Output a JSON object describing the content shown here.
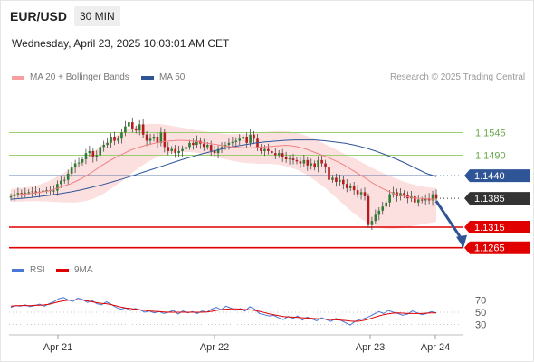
{
  "header": {
    "symbol": "EUR/USD",
    "timeframe": "30 MIN",
    "timestamp": "Wednesday, April 23, 2025 10:03:01 AM CET"
  },
  "legend": {
    "ma20_label": "MA 20 + Bollinger Bands",
    "ma50_label": "MA 50",
    "copyright": "Research © 2025 Trading Central",
    "rsi_label": "RSI",
    "ma9_label": "9MA"
  },
  "colors": {
    "ma20": "#f08080",
    "ma50": "#2f5597",
    "band": "#fbd5d5",
    "bull": "#2e7d32",
    "bear": "#b71c1c",
    "resistance": "#9acd6e",
    "pivot": "#2f5597",
    "support": "#e00000",
    "rsi": "#4a78d6",
    "rsi_ma": "#e00000",
    "current": "#333333"
  },
  "chart_data": [
    {
      "type": "candlestick",
      "title": "EUR/USD 30 MIN",
      "x_ticks": [
        "Apr 21",
        "Apr 22",
        "Apr 23",
        "Apr 24"
      ],
      "ylim": [
        1.1238,
        1.1645
      ],
      "levels": [
        {
          "label": "1.1545",
          "value": 1.1545,
          "kind": "resistance"
        },
        {
          "label": "1.1490",
          "value": 1.149,
          "kind": "resistance"
        },
        {
          "label": "1.1440",
          "value": 1.144,
          "kind": "pivot"
        },
        {
          "label": "1.1385",
          "value": 1.1385,
          "kind": "current"
        },
        {
          "label": "1.1315",
          "value": 1.1315,
          "kind": "support"
        },
        {
          "label": "1.1265",
          "value": 1.1265,
          "kind": "support"
        }
      ],
      "close": [
        1.139,
        1.1395,
        1.1398,
        1.1397,
        1.1399,
        1.14,
        1.1402,
        1.14,
        1.1401,
        1.1404,
        1.1405,
        1.1403,
        1.1404,
        1.142,
        1.1428,
        1.143,
        1.1445,
        1.146,
        1.147,
        1.1472,
        1.148,
        1.1495,
        1.15,
        1.1485,
        1.149,
        1.151,
        1.1515,
        1.152,
        1.1535,
        1.1525,
        1.153,
        1.1545,
        1.156,
        1.157,
        1.1555,
        1.155,
        1.1565,
        1.154,
        1.1525,
        1.153,
        1.1535,
        1.152,
        1.1545,
        1.151,
        1.15,
        1.1505,
        1.1495,
        1.15,
        1.1505,
        1.151,
        1.152,
        1.1515,
        1.1525,
        1.1518,
        1.151,
        1.1515,
        1.15,
        1.1495,
        1.1505,
        1.151,
        1.1515,
        1.152,
        1.1522,
        1.1525,
        1.153,
        1.1535,
        1.152,
        1.154,
        1.153,
        1.151,
        1.15,
        1.1505,
        1.15,
        1.1495,
        1.149,
        1.1495,
        1.1485,
        1.148,
        1.1482,
        1.1478,
        1.1475,
        1.147,
        1.1478,
        1.1465,
        1.147,
        1.146,
        1.1478,
        1.147,
        1.146,
        1.143,
        1.1435,
        1.1425,
        1.143,
        1.142,
        1.141,
        1.1415,
        1.1405,
        1.1395,
        1.14,
        1.139,
        1.132,
        1.133,
        1.1345,
        1.1355,
        1.1365,
        1.1375,
        1.1395,
        1.14,
        1.139,
        1.1398,
        1.1392,
        1.1385,
        1.139,
        1.1375,
        1.1382,
        1.138,
        1.1385,
        1.138,
        1.1395,
        1.1385
      ],
      "ma20": [
        1.1392,
        1.1393,
        1.1395,
        1.1396,
        1.1397,
        1.1399,
        1.1401,
        1.1403,
        1.1407,
        1.1411,
        1.1416,
        1.142,
        1.1426,
        1.1432,
        1.144,
        1.1448,
        1.1457,
        1.1466,
        1.1474,
        1.1481,
        1.1488,
        1.1494,
        1.1501,
        1.1506,
        1.151,
        1.1514,
        1.1517,
        1.152,
        1.1522,
        1.1524,
        1.1525,
        1.1526,
        1.1526,
        1.1525,
        1.1524,
        1.1522,
        1.152,
        1.1518,
        1.1516,
        1.1514,
        1.1512,
        1.151,
        1.1509,
        1.1508,
        1.1508,
        1.1508,
        1.1509,
        1.151,
        1.1511,
        1.1512,
        1.1513,
        1.1514,
        1.1513,
        1.1511,
        1.1508,
        1.1504,
        1.1499,
        1.1494,
        1.1489,
        1.1484,
        1.1478,
        1.1472,
        1.1465,
        1.1457,
        1.1449,
        1.1441,
        1.1433,
        1.1424,
        1.1416,
        1.1409,
        1.1403,
        1.1397,
        1.1393,
        1.139,
        1.1388,
        1.1386,
        1.1385,
        1.1384,
        1.1383,
        1.1383
      ],
      "ma50": [
        1.1383,
        1.1385,
        1.1387,
        1.139,
        1.1393,
        1.1397,
        1.1401,
        1.1406,
        1.1412,
        1.1418,
        1.1425,
        1.1432,
        1.144,
        1.1448,
        1.1456,
        1.1464,
        1.1472,
        1.148,
        1.1487,
        1.1494,
        1.15,
        1.1506,
        1.1511,
        1.1515,
        1.1519,
        1.1522,
        1.1524,
        1.1526,
        1.1527,
        1.1527,
        1.1527,
        1.1525,
        1.1522,
        1.1519,
        1.1514,
        1.1508,
        1.15,
        1.1491,
        1.1481,
        1.147,
        1.1458,
        1.1446,
        1.1438
      ],
      "band_upper": [
        1.1408,
        1.141,
        1.1413,
        1.1418,
        1.1426,
        1.1437,
        1.145,
        1.1465,
        1.1482,
        1.15,
        1.1517,
        1.1533,
        1.1546,
        1.1556,
        1.1563,
        1.1566,
        1.1566,
        1.1563,
        1.1559,
        1.1555,
        1.1551,
        1.1548,
        1.1545,
        1.1542,
        1.1541,
        1.1541,
        1.1542,
        1.1545,
        1.1548,
        1.1549,
        1.1548,
        1.1544,
        1.1537,
        1.1528,
        1.1517,
        1.1506,
        1.1494,
        1.1484,
        1.1472,
        1.146,
        1.1449,
        1.1439,
        1.143,
        1.1422,
        1.1416,
        1.1412,
        1.141
      ],
      "band_lower": [
        1.1376,
        1.1377,
        1.1378,
        1.1378,
        1.1377,
        1.1376,
        1.1375,
        1.1375,
        1.1378,
        1.1385,
        1.1396,
        1.1411,
        1.1427,
        1.1445,
        1.1462,
        1.1476,
        1.1487,
        1.1494,
        1.1498,
        1.1498,
        1.1496,
        1.1492,
        1.1487,
        1.1481,
        1.1476,
        1.1472,
        1.147,
        1.1469,
        1.1469,
        1.1467,
        1.1462,
        1.1454,
        1.1442,
        1.1427,
        1.141,
        1.139,
        1.137,
        1.135,
        1.1333,
        1.132,
        1.1313,
        1.131,
        1.1312,
        1.1316,
        1.132,
        1.1324,
        1.1328
      ],
      "forecast_arrow": {
        "from": 1.1385,
        "to": 1.1265
      }
    },
    {
      "type": "line",
      "title": "RSI",
      "ylim": [
        10,
        90
      ],
      "y_ticks": [
        70,
        50,
        30
      ],
      "series": [
        {
          "name": "RSI",
          "values": [
            58,
            61,
            60,
            62,
            59,
            61,
            63,
            60,
            64,
            67,
            72,
            74,
            70,
            68,
            73,
            71,
            66,
            69,
            64,
            62,
            67,
            63,
            58,
            55,
            57,
            53,
            56,
            54,
            50,
            52,
            49,
            51,
            48,
            50,
            53,
            47,
            52,
            49,
            51,
            48,
            52,
            50,
            55,
            58,
            54,
            60,
            57,
            53,
            56,
            52,
            59,
            55,
            48,
            46,
            44,
            45,
            41,
            38,
            43,
            40,
            44,
            37,
            42,
            39,
            36,
            41,
            38,
            35,
            40,
            37,
            33,
            29,
            35,
            38,
            40,
            43,
            47,
            51,
            48,
            53,
            50,
            48,
            45,
            47,
            52,
            49,
            46,
            48,
            51,
            49
          ]
        },
        {
          "name": "9MA",
          "values": [
            60,
            60.5,
            61,
            61,
            60.8,
            61.2,
            61.5,
            62,
            63,
            65,
            67,
            68.5,
            69.5,
            70,
            70.5,
            70,
            68.5,
            67,
            65.5,
            64.5,
            64,
            62.5,
            60.5,
            58.5,
            57,
            56,
            55,
            54,
            53,
            52,
            51.5,
            51,
            50.5,
            50,
            50,
            50,
            50,
            50,
            50,
            50,
            50,
            50.5,
            51.5,
            53,
            54,
            55,
            55.5,
            55.5,
            55,
            54.5,
            54,
            53,
            51.5,
            49.5,
            47.5,
            46,
            44.5,
            43,
            42.5,
            42,
            41.5,
            41,
            40.5,
            40,
            39.5,
            39,
            38.5,
            38,
            37.5,
            37,
            36.5,
            35.5,
            35,
            35.5,
            37,
            39,
            41.5,
            44,
            46,
            47.5,
            48.5,
            49,
            48.5,
            48,
            48,
            48,
            48,
            48.5,
            49,
            49
          ]
        }
      ]
    }
  ]
}
